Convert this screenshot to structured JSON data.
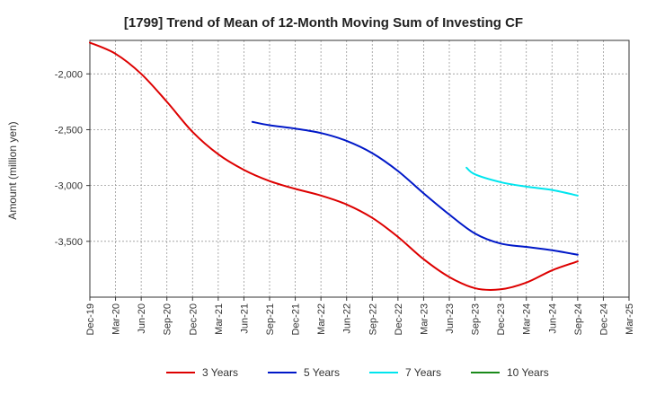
{
  "chart_data": {
    "type": "line",
    "title": "[1799]  Trend of Mean of 12-Month Moving Sum of Investing CF",
    "xlabel": "",
    "ylabel": "Amount (million yen)",
    "ylim": [
      -4000,
      -1700
    ],
    "y_ticks": [
      -2000,
      -2500,
      -3000,
      -3500
    ],
    "y_tick_labels": [
      "-2,000",
      "-2,500",
      "-3,000",
      "-3,500"
    ],
    "x_tick_labels": [
      "Dec-19",
      "Mar-20",
      "Jun-20",
      "Sep-20",
      "Dec-20",
      "Mar-21",
      "Jun-21",
      "Sep-21",
      "Dec-21",
      "Mar-22",
      "Jun-22",
      "Sep-22",
      "Dec-22",
      "Mar-23",
      "Jun-23",
      "Sep-23",
      "Dec-23",
      "Mar-24",
      "Jun-24",
      "Sep-24",
      "Dec-24",
      "Mar-25"
    ],
    "grid": true,
    "legend_position": "bottom",
    "series": [
      {
        "name": "3 Years",
        "color": "#dd0000",
        "points": [
          [
            0,
            -1720
          ],
          [
            1,
            -1820
          ],
          [
            2,
            -2000
          ],
          [
            3,
            -2250
          ],
          [
            4,
            -2520
          ],
          [
            5,
            -2720
          ],
          [
            6,
            -2860
          ],
          [
            7,
            -2960
          ],
          [
            8,
            -3030
          ],
          [
            9,
            -3090
          ],
          [
            10,
            -3170
          ],
          [
            11,
            -3290
          ],
          [
            12,
            -3460
          ],
          [
            13,
            -3660
          ],
          [
            14,
            -3820
          ],
          [
            15,
            -3920
          ],
          [
            16,
            -3930
          ],
          [
            17,
            -3870
          ],
          [
            18,
            -3760
          ],
          [
            19,
            -3680
          ]
        ]
      },
      {
        "name": "5 Years",
        "color": "#0018c8",
        "points": [
          [
            6.33,
            -2430
          ],
          [
            7,
            -2460
          ],
          [
            8,
            -2490
          ],
          [
            9,
            -2530
          ],
          [
            10,
            -2600
          ],
          [
            11,
            -2710
          ],
          [
            12,
            -2870
          ],
          [
            13,
            -3070
          ],
          [
            14,
            -3260
          ],
          [
            15,
            -3430
          ],
          [
            16,
            -3520
          ],
          [
            17,
            -3550
          ],
          [
            18,
            -3580
          ],
          [
            19,
            -3620
          ]
        ]
      },
      {
        "name": "7 Years",
        "color": "#00e5ee",
        "points": [
          [
            14.67,
            -2840
          ],
          [
            15,
            -2900
          ],
          [
            16,
            -2970
          ],
          [
            17,
            -3010
          ],
          [
            18,
            -3040
          ],
          [
            19,
            -3090
          ]
        ]
      },
      {
        "name": "10 Years",
        "color": "#1a8a1a",
        "points": []
      }
    ]
  }
}
